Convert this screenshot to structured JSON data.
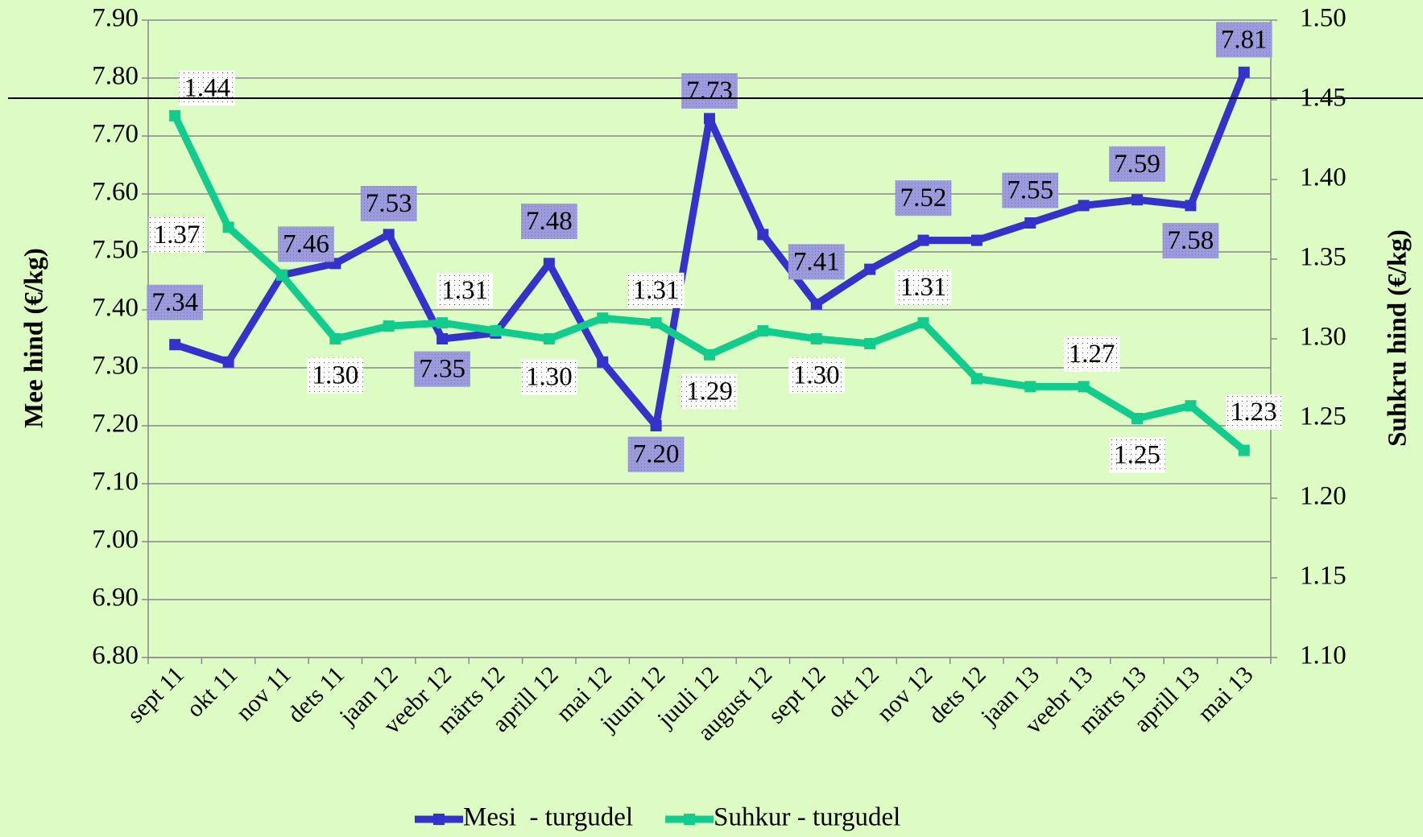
{
  "chart_data": {
    "type": "line",
    "categories": [
      "sept 11",
      "okt 11",
      "nov 11",
      "dets 11",
      "jaan 12",
      "veebr 12",
      "märts 12",
      "aprill 12",
      "mai 12",
      "juuni 12",
      "juuli 12",
      "august 12",
      "sept 12",
      "okt 12",
      "nov 12",
      "dets 12",
      "jaan 13",
      "veebr 13",
      "märts 13",
      "aprill 13",
      "mai 13"
    ],
    "y_label": "Mee hind (€/kg)",
    "y2_label": "Suhkru hind (€/kg)",
    "ylim": [
      6.8,
      7.9
    ],
    "yticks": [
      {
        "value": 6.8,
        "label": "6.80"
      },
      {
        "value": 6.9,
        "label": "6.90"
      },
      {
        "value": 7.0,
        "label": "7.00"
      },
      {
        "value": 7.1,
        "label": "7.10"
      },
      {
        "value": 7.2,
        "label": "7.20"
      },
      {
        "value": 7.3,
        "label": "7.30"
      },
      {
        "value": 7.4,
        "label": "7.40"
      },
      {
        "value": 7.5,
        "label": "7.50"
      },
      {
        "value": 7.6,
        "label": "7.60"
      },
      {
        "value": 7.7,
        "label": "7.70"
      },
      {
        "value": 7.8,
        "label": "7.80"
      },
      {
        "value": 7.9,
        "label": "7.90"
      }
    ],
    "y2lim": [
      1.1,
      1.5
    ],
    "y2ticks": [
      {
        "value": 1.1,
        "label": "1.10"
      },
      {
        "value": 1.15,
        "label": "1.15"
      },
      {
        "value": 1.2,
        "label": "1.20"
      },
      {
        "value": 1.25,
        "label": "1.25"
      },
      {
        "value": 1.3,
        "label": "1.30"
      },
      {
        "value": 1.35,
        "label": "1.35"
      },
      {
        "value": 1.4,
        "label": "1.40"
      },
      {
        "value": 1.45,
        "label": "1.45"
      },
      {
        "value": 1.5,
        "label": "1.50"
      }
    ],
    "grid": true,
    "legend": "bottom",
    "series": [
      {
        "name": "Mesi  - turgudel",
        "color": "#3333cc",
        "values": [
          7.34,
          7.31,
          7.46,
          7.48,
          7.53,
          7.35,
          7.36,
          7.48,
          7.31,
          7.2,
          7.73,
          7.53,
          7.41,
          7.47,
          7.52,
          7.52,
          7.55,
          7.58,
          7.59,
          7.58,
          7.81
        ],
        "value_labels": [
          "7.34",
          null,
          "7.46",
          null,
          "7.53",
          "7.35",
          null,
          "7.48",
          null,
          "7.20",
          "7.73",
          null,
          "7.41",
          null,
          "7.52",
          null,
          "7.55",
          null,
          "7.59",
          "7.58",
          "7.81"
        ]
      },
      {
        "name": "Suhkur - turgudel",
        "color": "#11cc8c",
        "axis": "y2",
        "values": [
          1.44,
          1.37,
          1.34,
          1.3,
          1.308,
          1.31,
          1.305,
          1.3,
          1.313,
          1.31,
          1.29,
          1.305,
          1.3,
          1.297,
          1.31,
          1.275,
          1.27,
          1.27,
          1.25,
          1.258,
          1.23
        ],
        "value_labels": [
          "1.44",
          "1.37",
          null,
          "1.30",
          null,
          "1.31",
          null,
          "1.30",
          null,
          "1.31",
          "1.29",
          null,
          "1.30",
          null,
          "1.31",
          null,
          null,
          "1.27",
          "1.25",
          null,
          "1.23"
        ]
      }
    ]
  }
}
